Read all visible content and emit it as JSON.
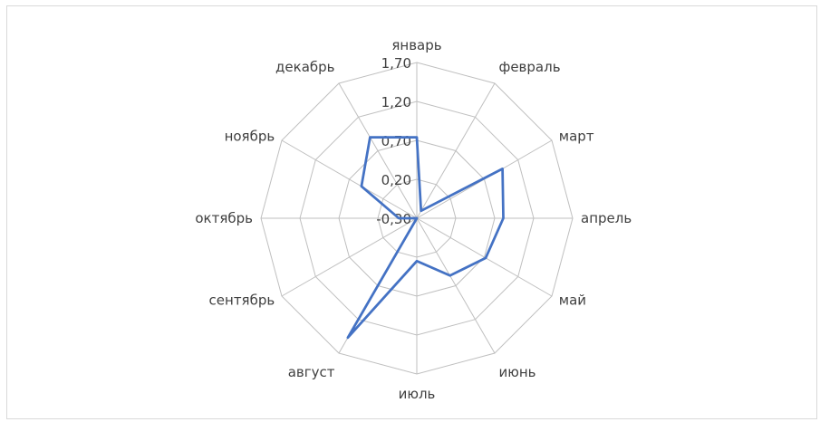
{
  "chart_data": {
    "type": "radar",
    "categories": [
      "январь",
      "февраль",
      "март",
      "апрель",
      "май",
      "июнь",
      "июль",
      "август",
      "сентябрь",
      "октябрь",
      "ноябрь",
      "декабрь"
    ],
    "series": [
      {
        "values": [
          0.74,
          -0.19,
          0.97,
          0.81,
          0.72,
          0.55,
          0.25,
          1.47,
          -0.3,
          -0.07,
          0.52,
          0.9
        ]
      }
    ],
    "radial_ticks": [
      "-0,30",
      "0,20",
      "0,70",
      "1,20",
      "1,70"
    ],
    "rlim": [
      -0.3,
      1.7
    ],
    "grid": true,
    "line_color": "#4472c4",
    "grid_color": "#bfbfbf"
  }
}
